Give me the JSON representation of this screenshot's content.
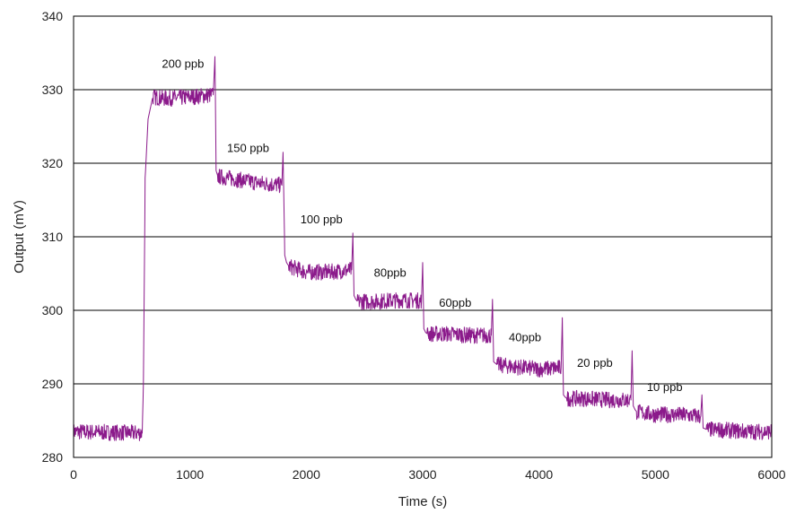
{
  "chart_data": {
    "type": "line",
    "title": "",
    "xlabel": "Time (s)",
    "ylabel": "Output (mV)",
    "xlim": [
      0,
      6000
    ],
    "ylim": [
      280,
      340
    ],
    "xticks": [
      0,
      1000,
      2000,
      3000,
      4000,
      5000,
      6000
    ],
    "yticks": [
      280,
      290,
      300,
      310,
      320,
      330,
      340
    ],
    "grid": "horizontal",
    "legend": "none",
    "line_color": "#8b1a8b",
    "series": [
      {
        "x": [
          0,
          590,
          600,
          615,
          640,
          680,
          800,
          1000,
          1200,
          1215,
          1225,
          1240,
          1400,
          1600,
          1790,
          1800,
          1815,
          1830,
          1850,
          2000,
          2200,
          2390,
          2400,
          2410,
          2425,
          2440,
          2600,
          2800,
          2990,
          3000,
          3010,
          3025,
          3040,
          3200,
          3400,
          3590,
          3600,
          3610,
          3625,
          3640,
          3800,
          4000,
          4190,
          4200,
          4210,
          4225,
          4240,
          4400,
          4600,
          4790,
          4800,
          4810,
          4825,
          4840,
          5000,
          5200,
          5390,
          5400,
          5410,
          5440,
          5600,
          5800,
          6000
        ],
        "y": [
          283.5,
          283.3,
          290,
          318,
          326,
          329,
          328.8,
          329,
          329.3,
          334.5,
          319,
          318.2,
          317.8,
          317.3,
          317,
          321.5,
          307.5,
          306.5,
          306,
          305.2,
          305.2,
          305.5,
          310.5,
          302,
          301.5,
          301.2,
          301.2,
          301.4,
          301.3,
          306.5,
          297.5,
          297,
          296.8,
          296.8,
          296.6,
          296.6,
          301.5,
          293,
          292.8,
          292.6,
          292.3,
          292,
          292.2,
          299,
          288.5,
          288.2,
          288,
          288,
          287.8,
          287.8,
          294.5,
          287,
          286.5,
          286.2,
          285.8,
          285.8,
          285.6,
          288.5,
          284,
          283.8,
          283.7,
          283.5,
          283.5
        ]
      }
    ],
    "annotations": [
      {
        "text": "200 ppb",
        "x": 940,
        "y": 333
      },
      {
        "text": "150 ppb",
        "x": 1500,
        "y": 321.5
      },
      {
        "text": "100 ppb",
        "x": 2130,
        "y": 311.8
      },
      {
        "text": "80ppb",
        "x": 2720,
        "y": 304.6
      },
      {
        "text": "60ppb",
        "x": 3280,
        "y": 300.5
      },
      {
        "text": "40ppb",
        "x": 3880,
        "y": 295.8
      },
      {
        "text": "20 ppb",
        "x": 4480,
        "y": 292.3
      },
      {
        "text": "10 ppb",
        "x": 5080,
        "y": 289
      }
    ]
  }
}
